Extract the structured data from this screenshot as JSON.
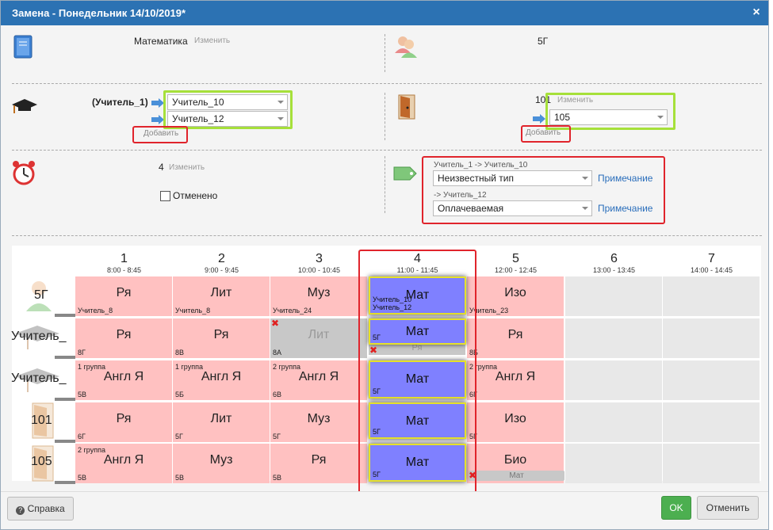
{
  "dialog": {
    "title": "Замена - Понедельник 14/10/2019*",
    "close": "×"
  },
  "top_left": {
    "subject": "Математика",
    "change": "Изменить"
  },
  "top_right": {
    "class_name": "5Г"
  },
  "teacher": {
    "original": "(Учитель_1)",
    "select1": "Учитель_10",
    "select2": "Учитель_12",
    "add": "Добавить"
  },
  "room": {
    "original": "101",
    "change": "Изменить",
    "select": "105",
    "add": "Добавить"
  },
  "lesson": {
    "number": "4",
    "change": "Изменить",
    "cancelled_label": "Отменено"
  },
  "tags": {
    "line1_label": "Учитель_1 -> Учитель_10",
    "line1_select": "Неизвестный тип",
    "line1_note": "Примечание",
    "line2_label": "-> Учитель_12",
    "line2_select": "Оплачеваемая",
    "line2_note": "Примечание"
  },
  "schedule": {
    "columns": [
      {
        "num": "1",
        "time": "8:00 - 8:45"
      },
      {
        "num": "2",
        "time": "9:00 - 9:45"
      },
      {
        "num": "3",
        "time": "10:00 - 10:45"
      },
      {
        "num": "4",
        "time": "11:00 - 11:45"
      },
      {
        "num": "5",
        "time": "12:00 - 12:45"
      },
      {
        "num": "6",
        "time": "13:00 - 13:45"
      },
      {
        "num": "7",
        "time": "14:00 - 14:45"
      }
    ],
    "rows": [
      {
        "label": "5Г",
        "cells": [
          {
            "subj": "Ря",
            "bl": "Учитель_8",
            "tl": ""
          },
          {
            "subj": "Лит",
            "bl": "Учитель_8",
            "tl": ""
          },
          {
            "subj": "Муз",
            "bl": "Учитель_24",
            "tl": ""
          },
          {
            "subj": "",
            "bl": "",
            "tl": ""
          },
          {
            "subj": "Изо",
            "bl": "Учитель_23",
            "tl": ""
          },
          {
            "subj": "",
            "bl": "",
            "tl": ""
          },
          {
            "subj": "",
            "bl": "",
            "tl": ""
          }
        ]
      },
      {
        "label": "Учитель_",
        "cells": [
          {
            "subj": "Ря",
            "bl": "8Г",
            "tl": ""
          },
          {
            "subj": "Ря",
            "bl": "8В",
            "tl": ""
          },
          {
            "subj": "Лит",
            "bl": "8А",
            "tl": ""
          },
          {
            "subj": "Ря",
            "bl": "",
            "tl": ""
          },
          {
            "subj": "Ря",
            "bl": "8Б",
            "tl": ""
          },
          {
            "subj": "",
            "bl": "",
            "tl": ""
          },
          {
            "subj": "",
            "bl": "",
            "tl": ""
          }
        ]
      },
      {
        "label": "Учитель_",
        "cells": [
          {
            "subj": "Англ Я",
            "bl": "5В",
            "tl": "1 группа"
          },
          {
            "subj": "Англ Я",
            "bl": "5Б",
            "tl": "1 группа"
          },
          {
            "subj": "Англ Я",
            "bl": "6В",
            "tl": "2 группа"
          },
          {
            "subj": "",
            "bl": "",
            "tl": ""
          },
          {
            "subj": "Англ Я",
            "bl": "6Г",
            "tl": "2 группа"
          },
          {
            "subj": "",
            "bl": "",
            "tl": ""
          },
          {
            "subj": "",
            "bl": "",
            "tl": ""
          }
        ]
      },
      {
        "label": "101",
        "cells": [
          {
            "subj": "Ря",
            "bl": "6Г",
            "tl": ""
          },
          {
            "subj": "Лит",
            "bl": "5Г",
            "tl": ""
          },
          {
            "subj": "Муз",
            "bl": "5Г",
            "tl": ""
          },
          {
            "subj": "",
            "bl": "",
            "tl": ""
          },
          {
            "subj": "Изо",
            "bl": "5Г",
            "tl": ""
          },
          {
            "subj": "",
            "bl": "",
            "tl": ""
          },
          {
            "subj": "",
            "bl": "",
            "tl": ""
          }
        ]
      },
      {
        "label": "105",
        "cells": [
          {
            "subj": "Англ Я",
            "bl": "5В",
            "tl": "2 группа"
          },
          {
            "subj": "Муз",
            "bl": "5В",
            "tl": ""
          },
          {
            "subj": "Ря",
            "bl": "5В",
            "tl": ""
          },
          {
            "subj": "",
            "bl": "",
            "tl": ""
          },
          {
            "subj": "Био",
            "bl": "5В",
            "tl": ""
          },
          {
            "subj": "",
            "bl": "",
            "tl": ""
          },
          {
            "subj": "",
            "bl": "",
            "tl": ""
          }
        ]
      }
    ],
    "mat_cards": [
      {
        "subj": "Мат",
        "line1": "Учитель_10",
        "line2": "Учитель_12"
      },
      {
        "subj": "Мат",
        "bl": "5Г"
      },
      {
        "subj": "Мат",
        "bl": "5Г"
      },
      {
        "subj": "Мат",
        "bl": "5Г"
      },
      {
        "subj": "Мат",
        "bl": "5Г"
      }
    ],
    "bio_sub": "Мат"
  },
  "footer": {
    "help": "Справка",
    "ok": "OK",
    "cancel": "Отменить"
  }
}
